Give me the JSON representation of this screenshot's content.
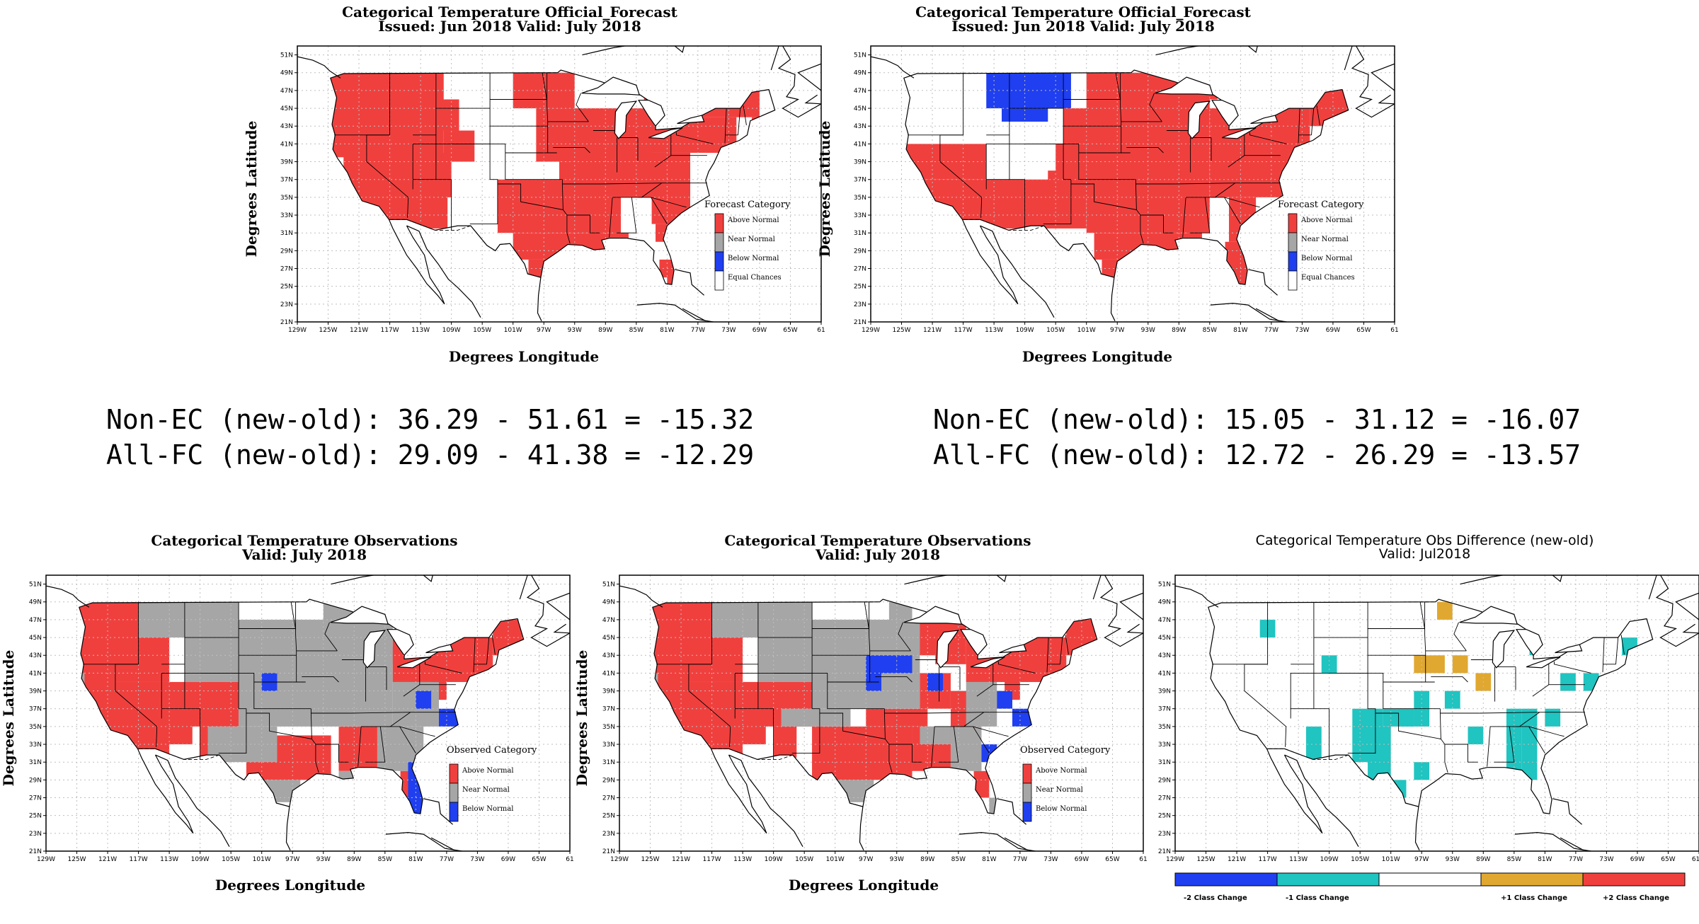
{
  "colors": {
    "above": "#f0403e",
    "near": "#a6a6a6",
    "below": "#1f3ff0",
    "equal": "#ffffff",
    "minus2": "#1f3ff0",
    "minus1": "#20c4c0",
    "plus1": "#e0a830",
    "plus2": "#f0403e"
  },
  "axis": {
    "lat_ticks": [
      "21N",
      "23N",
      "25N",
      "27N",
      "29N",
      "31N",
      "33N",
      "35N",
      "37N",
      "39N",
      "41N",
      "43N",
      "45N",
      "47N",
      "49N",
      "51N"
    ],
    "lon_ticks": [
      "129W",
      "125W",
      "121W",
      "117W",
      "113W",
      "109W",
      "105W",
      "101W",
      "97W",
      "93W",
      "89W",
      "85W",
      "81W",
      "77W",
      "73W",
      "69W",
      "65W",
      "61"
    ],
    "lon_ticks_diff": [
      "129W",
      "125W",
      "121W",
      "117W",
      "113W",
      "109W",
      "105W",
      "101W",
      "97W",
      "93W",
      "89W",
      "85W",
      "81W",
      "77W",
      "73W",
      "69W",
      "65W",
      "61W"
    ],
    "ylabel": "Degrees Latitude",
    "xlabel": "Degrees Longitude"
  },
  "forecast_left": {
    "title1": "Categorical Temperature Official_Forecast",
    "title2": "Issued: Jun 2018 Valid: July 2018",
    "legend_title": "Forecast Category",
    "legend": [
      "Above Normal",
      "Near Normal",
      "Below Normal",
      "Equal Chances"
    ]
  },
  "forecast_right": {
    "title1": "Categorical Temperature Official_Forecast",
    "title2": "Issued: Jun 2018 Valid: July 2018",
    "legend_title": "Forecast Category",
    "legend": [
      "Above Normal",
      "Near Normal",
      "Below Normal",
      "Equal Chances"
    ]
  },
  "stats_left": {
    "line1": "Non-EC (new-old): 36.29 - 51.61 = -15.32",
    "line2": "All-FC (new-old): 29.09 - 41.38 = -12.29"
  },
  "stats_right": {
    "line1": "Non-EC (new-old): 15.05 - 31.12 = -16.07",
    "line2": "All-FC (new-old): 12.72 - 26.29 = -13.57"
  },
  "obs_left": {
    "title1": "Categorical Temperature Observations",
    "title2": "Valid: July 2018",
    "legend_title": "Observed Category",
    "legend": [
      "Above Normal",
      "Near Normal",
      "Below Normal"
    ]
  },
  "obs_middle": {
    "title1": "Categorical Temperature Observations",
    "title2": "Valid: July 2018",
    "legend_title": "Observed Category",
    "legend": [
      "Above Normal",
      "Near Normal",
      "Below Normal"
    ]
  },
  "obs_diff": {
    "title1": "Categorical Temperature Obs Difference (new-old)",
    "title2": "Valid: Jul2018",
    "colorbar": [
      "-2 Class Change",
      "-1 Class Change",
      "+1 Class Change",
      "+2 Class Change"
    ]
  }
}
